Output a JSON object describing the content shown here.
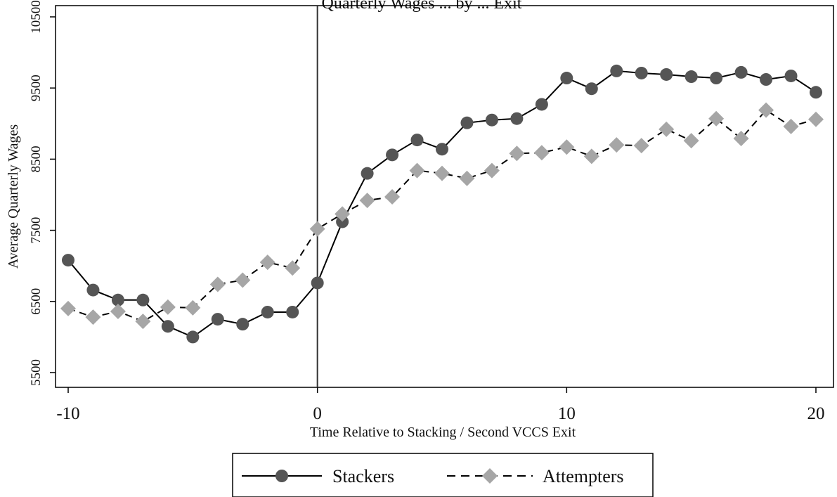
{
  "chart_data": {
    "type": "line",
    "title": "Quarterly Wages ... by ... Exit",
    "xlabel": "Time Relative to Stacking / Second VCCS Exit",
    "ylabel": "Average Quarterly Wages",
    "xlim": [
      -10,
      20
    ],
    "ylim": [
      5500,
      10500
    ],
    "xticks": [
      -10,
      0,
      10,
      20
    ],
    "yticks": [
      5500,
      6500,
      7500,
      8500,
      9500,
      10500
    ],
    "vertical_reference_line": 0,
    "grid": false,
    "legend_position": "bottom",
    "x": [
      -10,
      -9,
      -8,
      -7,
      -6,
      -5,
      -4,
      -3,
      -2,
      -1,
      0,
      1,
      2,
      3,
      4,
      5,
      6,
      7,
      8,
      9,
      10,
      11,
      12,
      13,
      14,
      15,
      16,
      17,
      18,
      19,
      20
    ],
    "series": [
      {
        "name": "Stackers",
        "style": "solid",
        "marker": "circle",
        "color": "#555555",
        "values": [
          7080,
          6660,
          6520,
          6520,
          6150,
          6000,
          6250,
          6180,
          6350,
          6350,
          6760,
          7620,
          8300,
          8560,
          8770,
          8640,
          9010,
          9050,
          9070,
          9270,
          9640,
          9490,
          9740,
          9710,
          9690,
          9660,
          9640,
          9720,
          9620,
          9670,
          9440
        ]
      },
      {
        "name": "Attempters",
        "style": "dashed",
        "marker": "diamond",
        "color": "#a6a6a6",
        "values": [
          6400,
          6280,
          6360,
          6220,
          6420,
          6410,
          6740,
          6800,
          7050,
          6970,
          7520,
          7730,
          7920,
          7970,
          8340,
          8300,
          8230,
          8340,
          8580,
          8590,
          8670,
          8540,
          8700,
          8690,
          8920,
          8760,
          9070,
          8790,
          9190,
          8960,
          9060
        ]
      }
    ]
  }
}
